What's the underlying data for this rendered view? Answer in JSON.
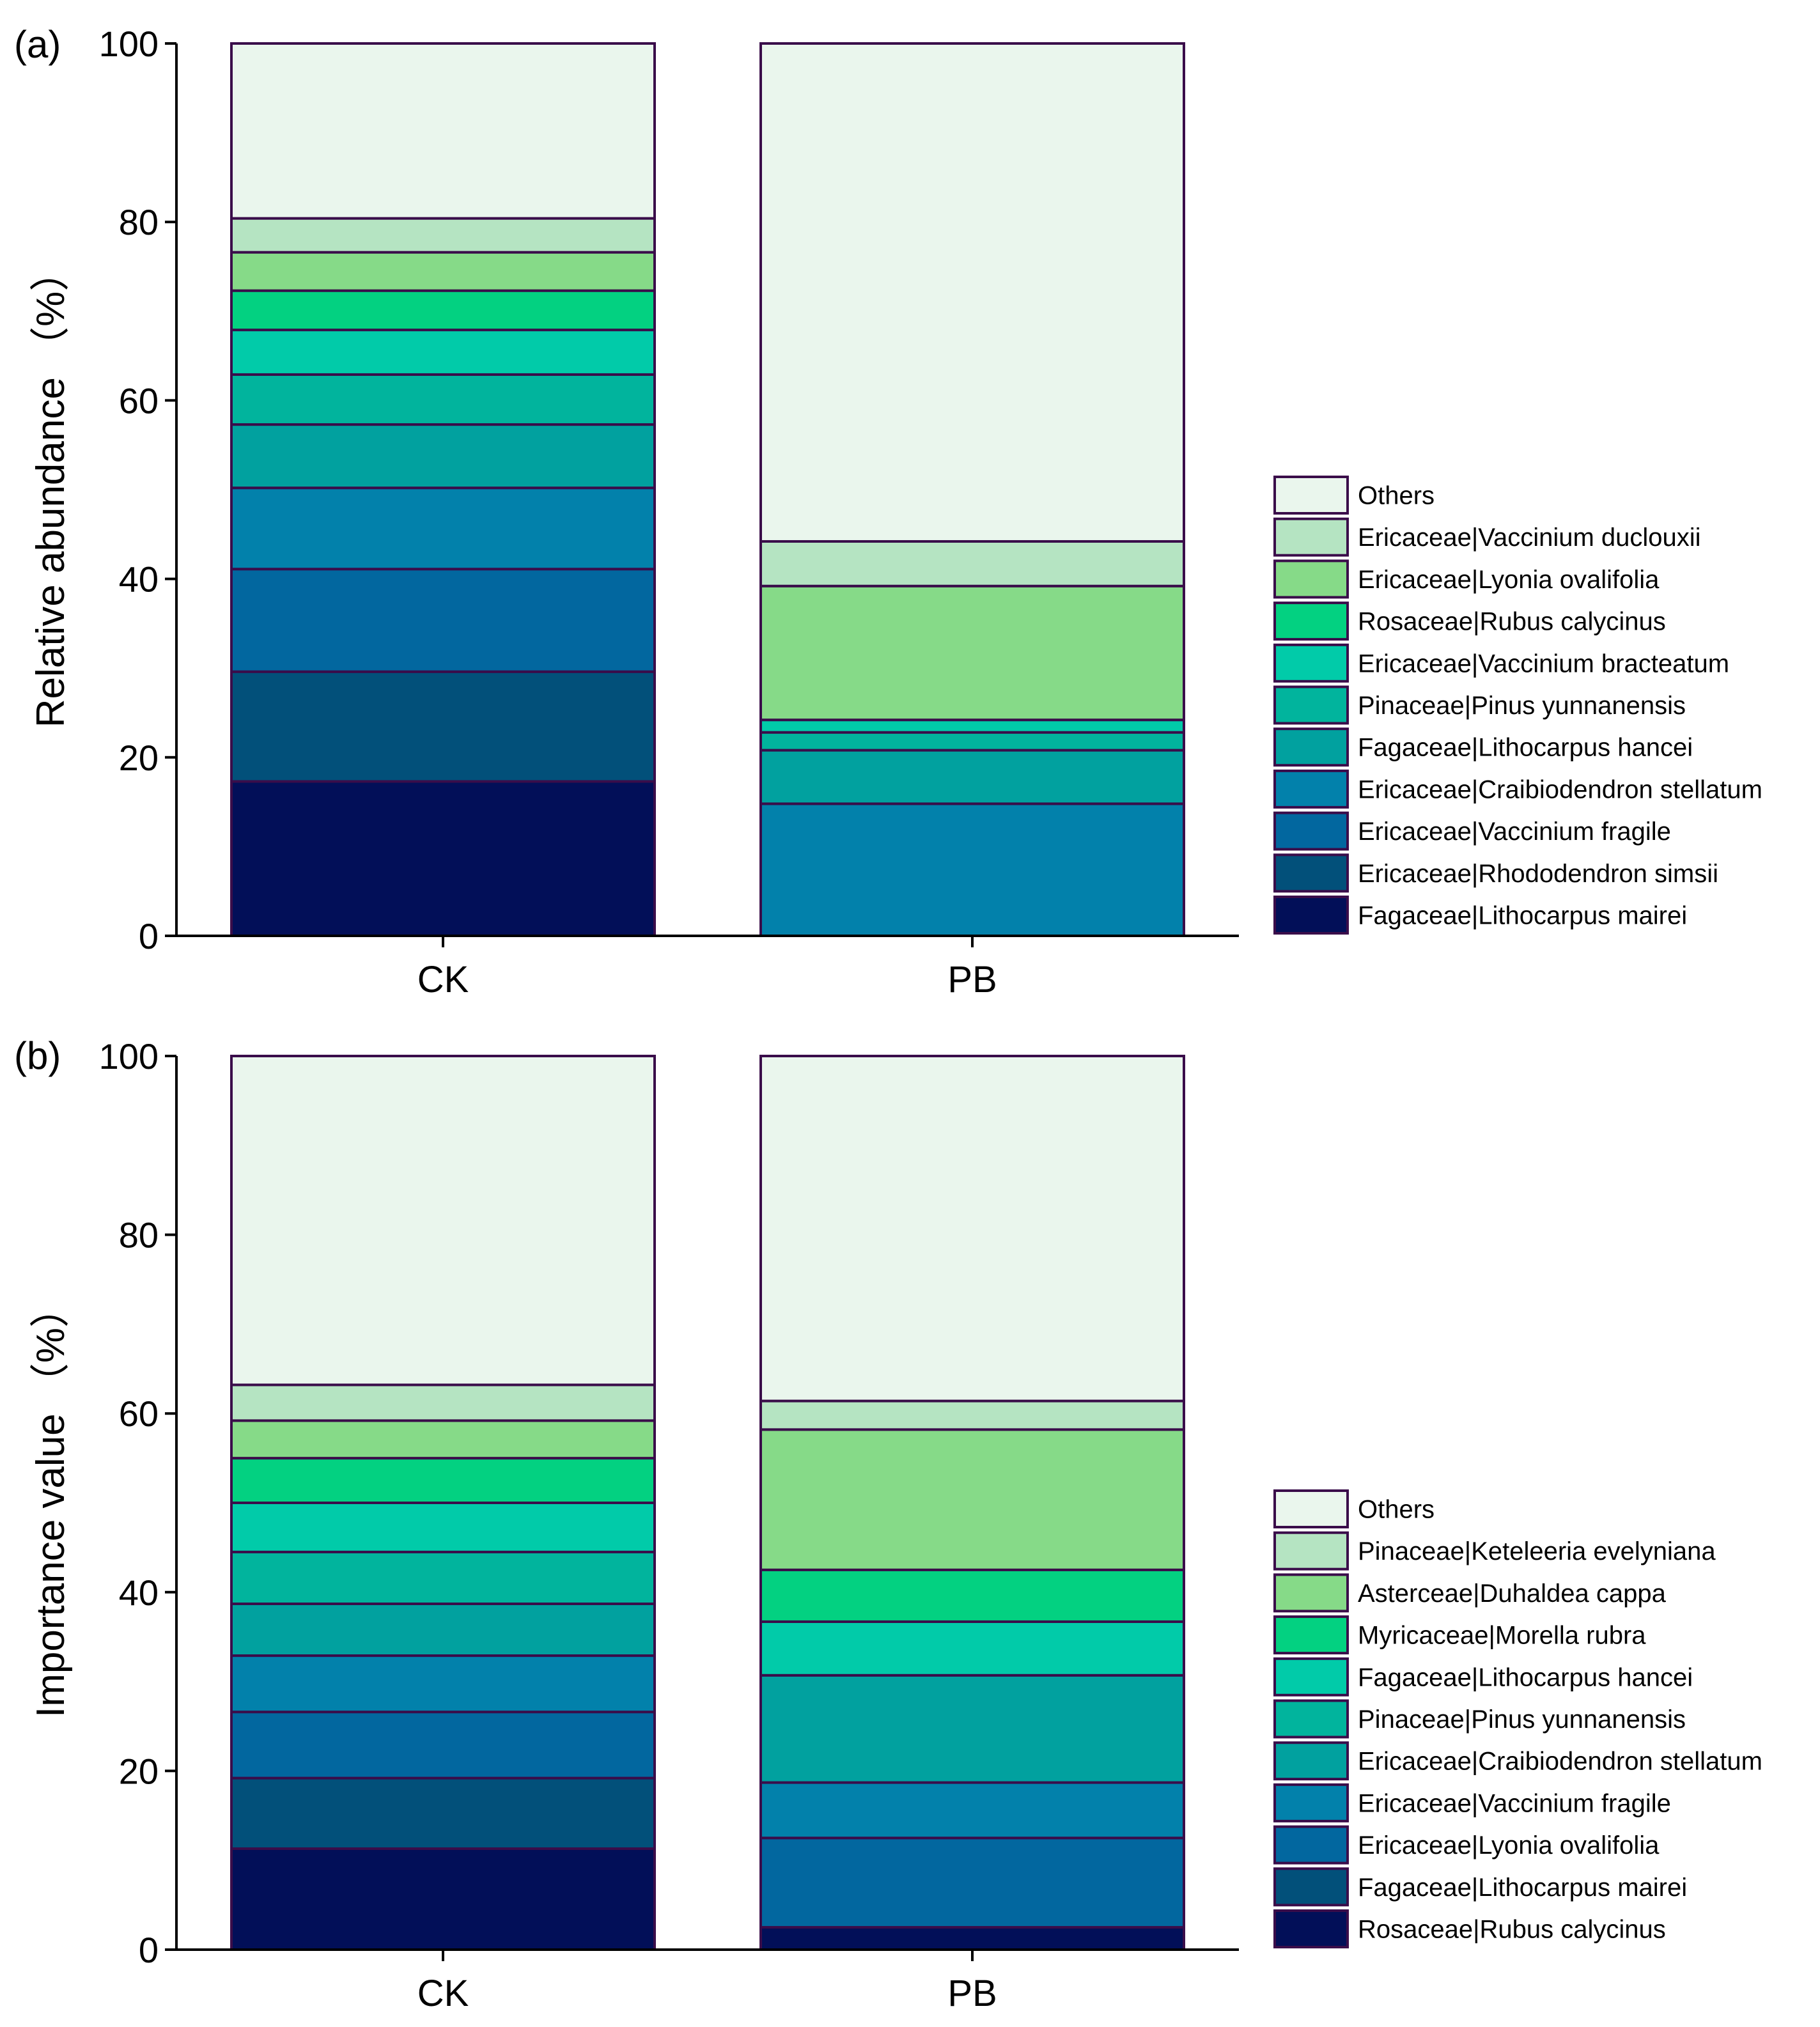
{
  "chart_data": [
    {
      "type": "bar",
      "stacked": true,
      "panel_label": "(a)",
      "ylabel": "Relative abundance （%）",
      "ylim": [
        0,
        100
      ],
      "yticks": [
        "0",
        "20",
        "40",
        "60",
        "80",
        "100"
      ],
      "categories": [
        "CK",
        "PB"
      ],
      "series": [
        {
          "name": "Fagaceae|Lithocarpus mairei",
          "color": "#020f58",
          "values": [
            17.3,
            0
          ]
        },
        {
          "name": "Ericaceae|Rhododendron simsii",
          "color": "#02507a",
          "values": [
            12.3,
            0
          ]
        },
        {
          "name": "Ericaceae|Vaccinium fragile",
          "color": "#02679f",
          "values": [
            11.5,
            0
          ]
        },
        {
          "name": "Ericaceae|Craibiodendron stellatum",
          "color": "#0281ab",
          "values": [
            9.1,
            14.8
          ]
        },
        {
          "name": "Fagaceae|Lithocarpus hancei",
          "color": "#01a19f",
          "values": [
            7.1,
            6.0
          ]
        },
        {
          "name": "Pinaceae|Pinus yunnanensis",
          "color": "#01b49d",
          "values": [
            5.6,
            2.0
          ]
        },
        {
          "name": "Ericaceae|Vaccinium bracteatum",
          "color": "#01cba9",
          "values": [
            5.0,
            1.4
          ]
        },
        {
          "name": "Rosaceae|Rubus calycinus",
          "color": "#03d181",
          "values": [
            4.4,
            0
          ]
        },
        {
          "name": "Ericaceae|Lyonia ovalifolia",
          "color": "#86da88",
          "values": [
            4.3,
            15.0
          ]
        },
        {
          "name": "Ericaceae|Vaccinium duclouxii",
          "color": "#b5e4c2",
          "values": [
            3.8,
            5.0
          ]
        },
        {
          "name": "Others",
          "color": "#eaf6ed",
          "values": [
            19.6,
            55.8
          ]
        }
      ]
    },
    {
      "type": "bar",
      "stacked": true,
      "panel_label": "(b)",
      "ylabel": "Importance value （%）",
      "ylim": [
        0,
        100
      ],
      "yticks": [
        "0",
        "20",
        "40",
        "60",
        "80",
        "100"
      ],
      "categories": [
        "CK",
        "PB"
      ],
      "series": [
        {
          "name": "Rosaceae|Rubus calycinus",
          "color": "#020f58",
          "values": [
            11.3,
            2.5
          ]
        },
        {
          "name": "Fagaceae|Lithocarpus mairei",
          "color": "#02507a",
          "values": [
            7.9,
            0
          ]
        },
        {
          "name": "Ericaceae|Lyonia ovalifolia",
          "color": "#02679f",
          "values": [
            7.4,
            10.0
          ]
        },
        {
          "name": "Ericaceae|Vaccinium fragile",
          "color": "#0281ab",
          "values": [
            6.3,
            6.2
          ]
        },
        {
          "name": "Ericaceae|Craibiodendron stellatum",
          "color": "#01a19f",
          "values": [
            5.8,
            12.0
          ]
        },
        {
          "name": "Pinaceae|Pinus yunnanensis",
          "color": "#01b49d",
          "values": [
            5.8,
            0
          ]
        },
        {
          "name": "Fagaceae|Lithocarpus hancei",
          "color": "#01cba9",
          "values": [
            5.5,
            6.0
          ]
        },
        {
          "name": "Myricaceae|Morella rubra",
          "color": "#03d181",
          "values": [
            5.0,
            5.8
          ]
        },
        {
          "name": "Asterceae|Duhaldea cappa",
          "color": "#86da88",
          "values": [
            4.2,
            15.7
          ]
        },
        {
          "name": "Pinaceae|Keteleeria evelyniana",
          "color": "#b5e4c2",
          "values": [
            4.0,
            3.2
          ]
        },
        {
          "name": "Others",
          "color": "#eaf6ed",
          "values": [
            36.8,
            38.6
          ]
        }
      ]
    }
  ]
}
